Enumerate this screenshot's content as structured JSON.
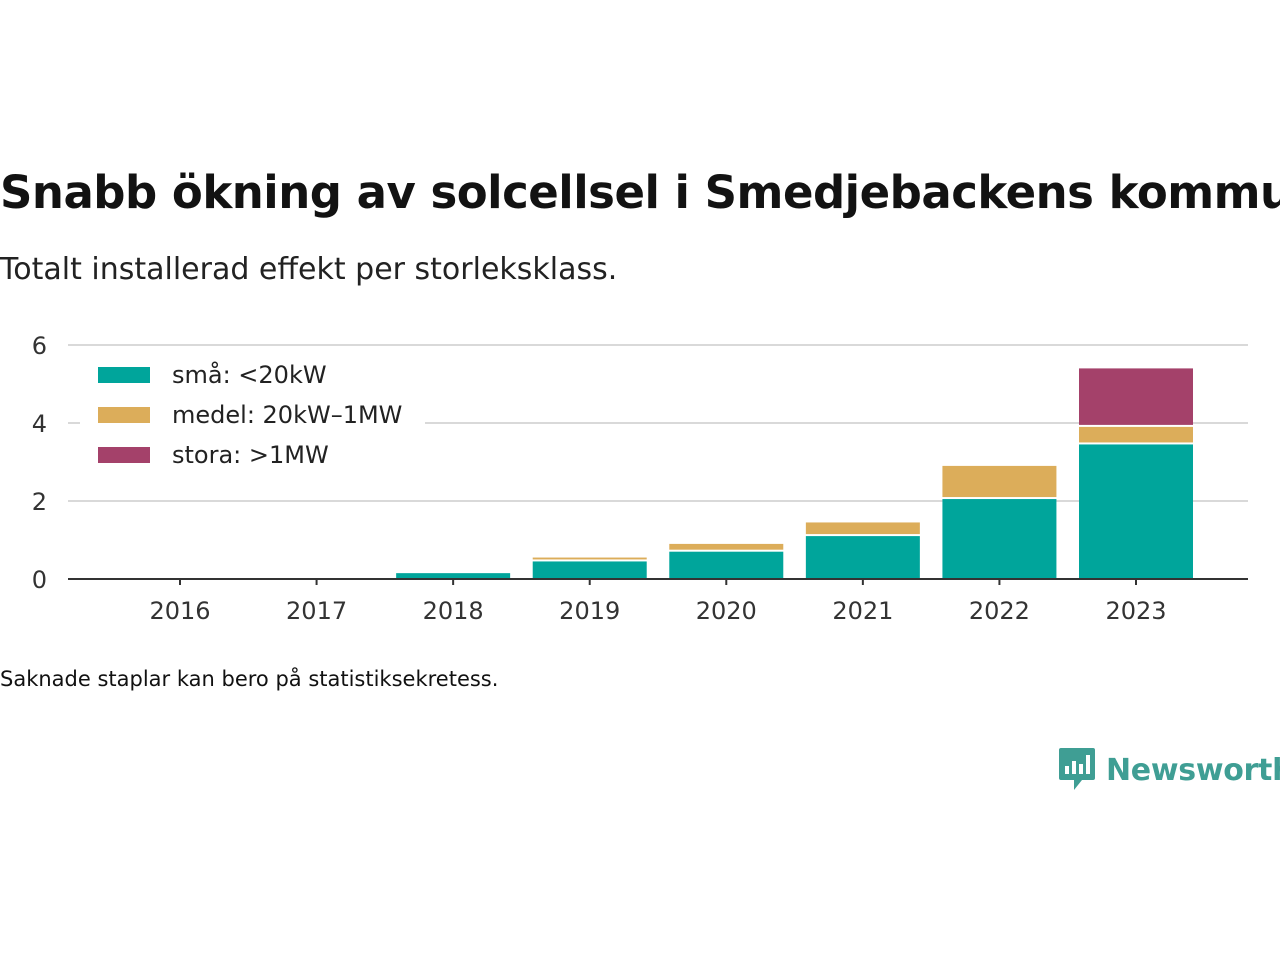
{
  "title": "Snabb ökning av solcellsel i Smedjebackens kommun",
  "subtitle": "Totalt installerad effekt per storleksklass.",
  "note": "Saknade staplar kan bero på statistiksekretess.",
  "brand": {
    "name": "Newsworthy",
    "icon": "newsworthy-logo-icon",
    "color": "#3f9e94"
  },
  "chart_data": {
    "type": "bar",
    "stacked": true,
    "categories": [
      "2016",
      "2017",
      "2018",
      "2019",
      "2020",
      "2021",
      "2022",
      "2023"
    ],
    "series": [
      {
        "name": "små: <20kW",
        "color": "#00a59b",
        "values": [
          0,
          0,
          0.15,
          0.45,
          0.7,
          1.1,
          2.05,
          3.45
        ]
      },
      {
        "name": "medel: 20kW–1MW",
        "color": "#dcad5a",
        "values": [
          0,
          0,
          0,
          0.1,
          0.2,
          0.35,
          0.85,
          0.45
        ]
      },
      {
        "name": "stora: >1MW",
        "color": "#a4416a",
        "values": [
          0,
          0,
          0,
          0,
          0,
          0,
          0,
          1.5
        ]
      }
    ],
    "ylim": [
      0,
      6
    ],
    "yticks": [
      "0",
      "2",
      "4",
      "6"
    ],
    "grid": true,
    "legend": "top-left",
    "xlabel": "",
    "ylabel": ""
  }
}
